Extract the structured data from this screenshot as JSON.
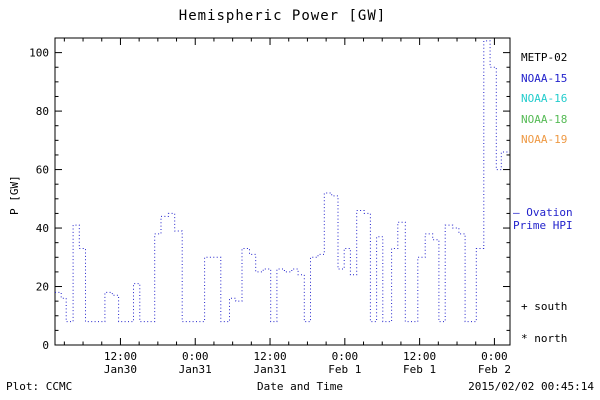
{
  "chart_data": {
    "type": "line",
    "style": "dotted-step",
    "title": "Hemispheric Power [GW]",
    "xlabel": "Date and Time",
    "ylabel": "P [GW]",
    "x_range": [
      0,
      73
    ],
    "y_range": [
      0,
      105
    ],
    "y_major_ticks": [
      0,
      20,
      40,
      60,
      80,
      100
    ],
    "y_minor_step": 5,
    "x_major_ticks": [
      {
        "t": 10.5,
        "time": "12:00",
        "date": "Jan30"
      },
      {
        "t": 22.5,
        "time": "0:00",
        "date": "Jan31"
      },
      {
        "t": 34.5,
        "time": "12:00",
        "date": "Jan31"
      },
      {
        "t": 46.5,
        "time": "0:00",
        "date": "Feb 1"
      },
      {
        "t": 58.5,
        "time": "12:00",
        "date": "Feb 1"
      },
      {
        "t": 70.5,
        "time": "0:00",
        "date": "Feb 2"
      }
    ],
    "x_minor_start": 1.5,
    "x_minor_step": 3,
    "line_color": "#2222cc",
    "steps": [
      [
        0,
        18
      ],
      [
        1.0,
        16
      ],
      [
        1.8,
        8
      ],
      [
        2.9,
        41
      ],
      [
        3.9,
        33
      ],
      [
        4.9,
        8
      ],
      [
        8.0,
        18
      ],
      [
        9.2,
        17
      ],
      [
        10.2,
        8
      ],
      [
        12.6,
        21
      ],
      [
        13.6,
        8
      ],
      [
        16.0,
        38
      ],
      [
        17.0,
        44
      ],
      [
        18.2,
        45
      ],
      [
        19.2,
        39
      ],
      [
        20.4,
        8
      ],
      [
        24.0,
        30
      ],
      [
        25.4,
        30
      ],
      [
        26.6,
        8
      ],
      [
        28.0,
        16
      ],
      [
        29.0,
        15
      ],
      [
        30.0,
        33
      ],
      [
        31.2,
        31
      ],
      [
        32.2,
        25
      ],
      [
        33.4,
        26
      ],
      [
        34.6,
        8
      ],
      [
        35.6,
        26
      ],
      [
        36.8,
        25
      ],
      [
        38.0,
        26
      ],
      [
        39.0,
        24
      ],
      [
        40.0,
        8
      ],
      [
        41.0,
        30
      ],
      [
        42.2,
        31
      ],
      [
        43.2,
        52
      ],
      [
        44.4,
        51
      ],
      [
        45.4,
        26
      ],
      [
        46.4,
        33
      ],
      [
        47.4,
        24
      ],
      [
        48.4,
        46
      ],
      [
        49.6,
        45
      ],
      [
        50.6,
        8
      ],
      [
        51.6,
        37
      ],
      [
        52.6,
        8
      ],
      [
        54.0,
        33
      ],
      [
        55.0,
        42
      ],
      [
        56.2,
        8
      ],
      [
        58.2,
        30
      ],
      [
        59.4,
        38
      ],
      [
        60.6,
        36
      ],
      [
        61.6,
        8
      ],
      [
        62.6,
        41
      ],
      [
        63.8,
        40
      ],
      [
        64.8,
        38
      ],
      [
        65.8,
        8
      ],
      [
        67.6,
        33
      ],
      [
        68.8,
        104
      ],
      [
        69.8,
        95
      ],
      [
        70.8,
        60
      ],
      [
        71.6,
        66
      ]
    ]
  },
  "legend": {
    "items": [
      {
        "label": "METP-02",
        "color": "#000000"
      },
      {
        "label": "NOAA-15",
        "color": "#2222cc"
      },
      {
        "label": "NOAA-16",
        "color": "#22cccc"
      },
      {
        "label": "NOAA-18",
        "color": "#55bb55"
      },
      {
        "label": "NOAA-19",
        "color": "#ee9944"
      }
    ]
  },
  "ovation": {
    "dash": "–",
    "line1": "Ovation",
    "line2": "Prime HPI",
    "color": "#2222cc"
  },
  "markers": {
    "south": "+ south",
    "north": "* north"
  },
  "footer": {
    "left": "Plot: CCMC",
    "right": "2015/02/02 00:45:14"
  }
}
